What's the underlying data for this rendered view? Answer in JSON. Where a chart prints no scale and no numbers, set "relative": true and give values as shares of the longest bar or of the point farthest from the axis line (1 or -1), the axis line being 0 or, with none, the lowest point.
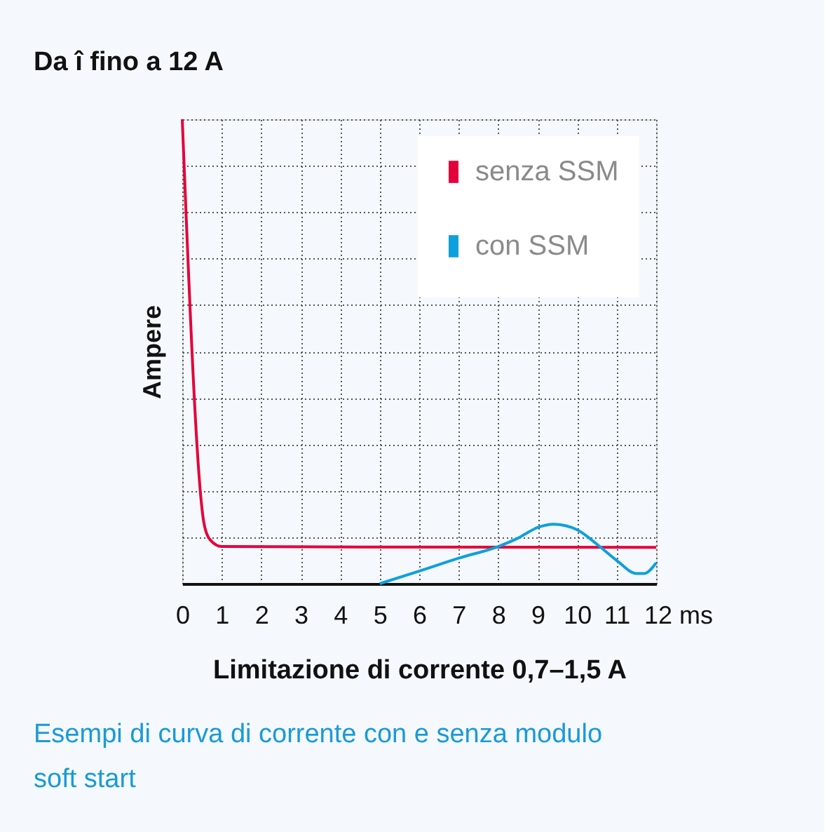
{
  "chart_data": {
    "type": "line",
    "title": "Da î fino a 12 A",
    "xlabel": "Limitazione di corrente 0,7–1,5 A",
    "ylabel": "Ampere",
    "annotations": [
      "Esempi di curva di corrente con e senza modulo soft start"
    ],
    "relative": true,
    "xlim": [
      0,
      12
    ],
    "xticks": [
      0,
      1,
      2,
      3,
      4,
      5,
      6,
      7,
      8,
      9,
      10,
      11,
      {
        "value": 12,
        "label": "12 ms"
      }
    ],
    "grid": true,
    "legend": "top right",
    "series": [
      {
        "name": "senza SSM",
        "color": "#e4003a",
        "x": [
          0,
          0.55,
          0.7,
          1,
          12
        ],
        "values": [
          1.0,
          0.13,
          0.095,
          0.08,
          0.078
        ]
      },
      {
        "name": "con SSM",
        "color": "#0ea0dc",
        "x": [
          5,
          6,
          7,
          8,
          8.5,
          9,
          9.4,
          10,
          10.5,
          11,
          11.5,
          11.7,
          12
        ],
        "values": [
          0,
          0.027,
          0.055,
          0.08,
          0.098,
          0.121,
          0.128,
          0.116,
          0.085,
          0.05,
          0.022,
          0.022,
          0.045
        ]
      }
    ]
  }
}
